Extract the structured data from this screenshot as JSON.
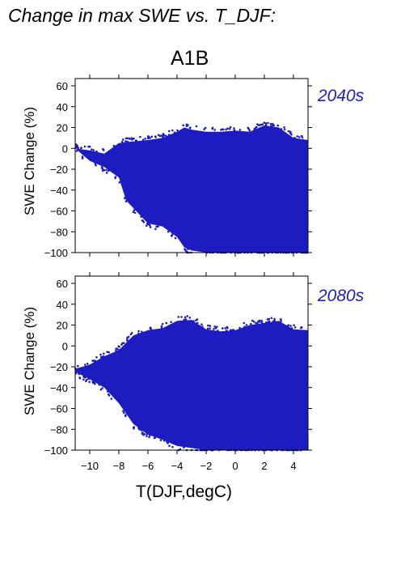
{
  "header": {
    "title": "Change in max SWE vs. T_DJF:",
    "scenario": "A1B"
  },
  "chart_data": [
    {
      "type": "scatter",
      "panel_label": "2040s",
      "xlabel": "T(DJF,degC)",
      "ylabel": "SWE Change (%)",
      "xlim": [
        -11,
        5
      ],
      "ylim": [
        -100,
        67
      ],
      "xticks": [
        -10,
        -8,
        -6,
        -4,
        -2,
        0,
        2,
        4
      ],
      "yticks": [
        -100,
        -80,
        -60,
        -40,
        -20,
        0,
        20,
        40,
        60
      ],
      "color": "#1c1cc0",
      "grid": false,
      "envelope": {
        "x": [
          -11.0,
          -10.0,
          -9.0,
          -8.0,
          -7.5,
          -6.0,
          -5.0,
          -4.0,
          -3.5,
          -3.0,
          -2.0,
          -1.0,
          0.0,
          1.0,
          2.0,
          3.0,
          4.0,
          5.0
        ],
        "upper": [
          0,
          -2,
          -5,
          5,
          6,
          8,
          10,
          16,
          20,
          18,
          16,
          16,
          17,
          16,
          22,
          20,
          10,
          8
        ],
        "lower": [
          0,
          -12,
          -18,
          -28,
          -50,
          -72,
          -75,
          -85,
          -95,
          -98,
          -100,
          -100,
          -100,
          -100,
          -100,
          -100,
          -100,
          -100
        ]
      }
    },
    {
      "type": "scatter",
      "panel_label": "2080s",
      "xlabel": "T(DJF,degC)",
      "ylabel": "SWE Change (%)",
      "xlim": [
        -11,
        5
      ],
      "ylim": [
        -100,
        67
      ],
      "xticks": [
        -10,
        -8,
        -6,
        -4,
        -2,
        0,
        2,
        4
      ],
      "yticks": [
        -100,
        -80,
        -60,
        -40,
        -20,
        0,
        20,
        40,
        60
      ],
      "color": "#1c1cc0",
      "grid": false,
      "envelope": {
        "x": [
          -11.0,
          -10.0,
          -9.0,
          -8.0,
          -7.0,
          -6.0,
          -5.0,
          -4.0,
          -3.0,
          -2.0,
          -1.0,
          0.0,
          1.0,
          2.0,
          3.0,
          4.0,
          5.0
        ],
        "upper": [
          -22,
          -18,
          -10,
          -4,
          10,
          15,
          17,
          24,
          25,
          16,
          14,
          15,
          20,
          22,
          24,
          16,
          15
        ],
        "lower": [
          -25,
          -32,
          -40,
          -55,
          -75,
          -85,
          -90,
          -96,
          -98,
          -100,
          -100,
          -100,
          -100,
          -100,
          -100,
          -100,
          -100
        ]
      }
    }
  ]
}
